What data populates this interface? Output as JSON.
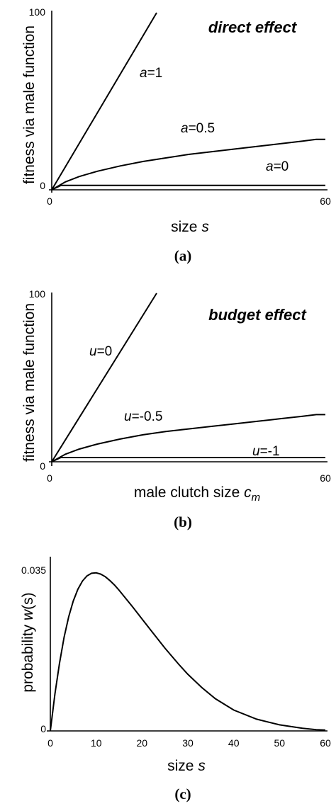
{
  "chart_data": [
    {
      "type": "line",
      "title": "direct effect",
      "xlabel": "size",
      "xlabel_var": "s",
      "ylabel": "fitness via male function",
      "xlim": [
        0,
        60
      ],
      "ylim": [
        0,
        100
      ],
      "xticks": [
        "0",
        "60"
      ],
      "yticks": [
        "0",
        "100"
      ],
      "caption": "(a)",
      "series": [
        {
          "name": "a=1",
          "var": "a",
          "eq": "=1",
          "x": [
            0,
            23
          ],
          "y": [
            0,
            100
          ]
        },
        {
          "name": "a=0.5",
          "var": "a",
          "eq": "=0.5",
          "x": [
            0,
            3,
            6,
            10,
            15,
            20,
            25,
            30,
            35,
            40,
            45,
            50,
            55,
            58,
            60
          ],
          "y": [
            0,
            4.5,
            7.5,
            10.5,
            13.5,
            16,
            18,
            20,
            21.5,
            23,
            24.5,
            26,
            27.5,
            28.5,
            28.5
          ]
        },
        {
          "name": "a=0",
          "var": "a",
          "eq": "=0",
          "x": [
            0,
            2,
            60
          ],
          "y": [
            0,
            2.5,
            2.5
          ]
        }
      ]
    },
    {
      "type": "line",
      "title": "budget effect",
      "xlabel": "male clutch size",
      "xlabel_var": "c",
      "xlabel_sub": "m",
      "ylabel": "fitness via male function",
      "xlim": [
        0,
        60
      ],
      "ylim": [
        0,
        100
      ],
      "xticks": [
        "0",
        "60"
      ],
      "yticks": [
        "0",
        "100"
      ],
      "caption": "(b)",
      "series": [
        {
          "name": "u=0",
          "var": "u",
          "eq": "=0",
          "x": [
            0,
            23
          ],
          "y": [
            0,
            100
          ]
        },
        {
          "name": "u=-0.5",
          "var": "u",
          "eq": "=-0.5",
          "x": [
            0,
            3,
            6,
            10,
            15,
            20,
            25,
            30,
            35,
            40,
            45,
            50,
            55,
            58,
            60
          ],
          "y": [
            0,
            4.5,
            7.5,
            10.5,
            13.5,
            16,
            18,
            19.5,
            21,
            22.5,
            24,
            25.5,
            27,
            28,
            28
          ]
        },
        {
          "name": "u=-1",
          "var": "u",
          "eq": "=-1",
          "x": [
            0,
            2,
            60
          ],
          "y": [
            0,
            2.5,
            2.5
          ]
        }
      ]
    },
    {
      "type": "line",
      "xlabel": "size",
      "xlabel_var": "s",
      "ylabel": "probability",
      "ylabel_var": "w",
      "ylabel_arg": "(s)",
      "xlim": [
        -1,
        62
      ],
      "ylim": [
        0,
        0.04
      ],
      "xticks": [
        "0",
        "10",
        "20",
        "30",
        "40",
        "50",
        "60"
      ],
      "yticks": [
        "0",
        "0.035"
      ],
      "caption": "(c)",
      "series": [
        {
          "x": [
            0,
            1,
            2,
            3,
            4,
            5,
            6,
            7,
            8,
            9,
            10,
            11,
            12,
            13,
            14,
            15,
            16,
            18,
            20,
            22,
            25,
            28,
            30,
            33,
            36,
            40,
            45,
            50,
            55,
            58,
            60
          ],
          "y": [
            0,
            0.0085,
            0.0155,
            0.0215,
            0.0262,
            0.0298,
            0.0325,
            0.0344,
            0.0356,
            0.0362,
            0.0363,
            0.036,
            0.0354,
            0.0345,
            0.0335,
            0.0323,
            0.031,
            0.0284,
            0.0257,
            0.023,
            0.019,
            0.0153,
            0.013,
            0.01,
            0.0074,
            0.0048,
            0.0027,
            0.0014,
            0.0006,
            0.0003,
            0.0002
          ]
        }
      ]
    }
  ]
}
